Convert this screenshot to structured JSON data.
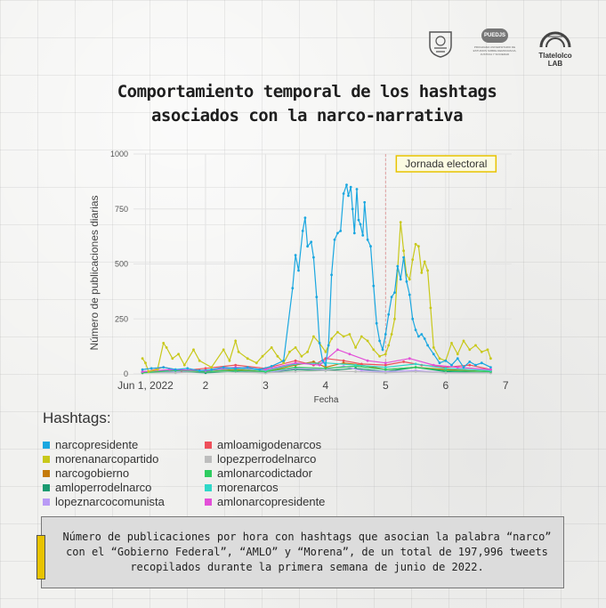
{
  "logos": {
    "unam": "unam-crest-icon",
    "puedjs": "PUEDJS",
    "puedjs_sub": "PROGRAMA UNIVERSITARIO DE ESTUDIOS SOBRE DEMOCRACIA, JUSTICIA Y SOCIEDAD",
    "tlatelolco": "Tlatelolco LAB"
  },
  "title_line1": "Comportamiento temporal de los hashtags",
  "title_line2": "asociados con la narco-narrativa",
  "hashtags_title": "Hashtags:",
  "caption": "Número de publicaciones por hora con hashtags que asocian la palabra “narco” con el “Gobierno Federal”, “AMLO” y “Morena”, de un total de 197,996 tweets recopilados durante la primera semana de junio de 2022.",
  "colors": {
    "accent_yellow": "#e8c300",
    "event_line": "#e0a0a0"
  },
  "chart_data": {
    "type": "line",
    "title": "Comportamiento temporal de los hashtags asociados con la narco-narrativa",
    "xlabel": "Fecha",
    "ylabel": "Número de publicaciones diarias",
    "x_tick_labels": [
      "Jun 1, 2022",
      "2",
      "3",
      "4",
      "5",
      "6",
      "7"
    ],
    "x_ticks": [
      1,
      2,
      3,
      4,
      5,
      6,
      7
    ],
    "xlim": [
      0.8,
      7.1
    ],
    "y_ticks": [
      0,
      250,
      500,
      750,
      1000
    ],
    "ylim": [
      0,
      1000
    ],
    "grid": true,
    "annotation": {
      "label": "Jornada electoral",
      "x": 5.0
    },
    "legend_position": "below",
    "series": [
      {
        "name": "narcopresidente",
        "color": "#1aa7e0",
        "points": [
          [
            0.95,
            20
          ],
          [
            1.1,
            25
          ],
          [
            1.3,
            30
          ],
          [
            1.5,
            20
          ],
          [
            1.7,
            25
          ],
          [
            1.9,
            15
          ],
          [
            2.1,
            20
          ],
          [
            2.3,
            30
          ],
          [
            2.5,
            25
          ],
          [
            2.7,
            30
          ],
          [
            2.9,
            20
          ],
          [
            3.1,
            35
          ],
          [
            3.3,
            60
          ],
          [
            3.45,
            390
          ],
          [
            3.5,
            540
          ],
          [
            3.55,
            470
          ],
          [
            3.62,
            650
          ],
          [
            3.66,
            710
          ],
          [
            3.7,
            580
          ],
          [
            3.76,
            600
          ],
          [
            3.8,
            530
          ],
          [
            3.85,
            350
          ],
          [
            3.9,
            140
          ],
          [
            3.95,
            60
          ],
          [
            4.0,
            40
          ],
          [
            4.05,
            130
          ],
          [
            4.1,
            450
          ],
          [
            4.15,
            610
          ],
          [
            4.2,
            640
          ],
          [
            4.25,
            650
          ],
          [
            4.3,
            820
          ],
          [
            4.35,
            860
          ],
          [
            4.38,
            810
          ],
          [
            4.42,
            850
          ],
          [
            4.45,
            750
          ],
          [
            4.48,
            640
          ],
          [
            4.52,
            840
          ],
          [
            4.55,
            700
          ],
          [
            4.58,
            680
          ],
          [
            4.62,
            630
          ],
          [
            4.65,
            780
          ],
          [
            4.7,
            610
          ],
          [
            4.75,
            580
          ],
          [
            4.8,
            400
          ],
          [
            4.85,
            230
          ],
          [
            4.9,
            150
          ],
          [
            4.95,
            110
          ],
          [
            5.0,
            180
          ],
          [
            5.05,
            270
          ],
          [
            5.1,
            350
          ],
          [
            5.15,
            370
          ],
          [
            5.2,
            490
          ],
          [
            5.25,
            430
          ],
          [
            5.3,
            530
          ],
          [
            5.35,
            420
          ],
          [
            5.4,
            360
          ],
          [
            5.45,
            250
          ],
          [
            5.5,
            200
          ],
          [
            5.55,
            170
          ],
          [
            5.6,
            180
          ],
          [
            5.65,
            160
          ],
          [
            5.7,
            130
          ],
          [
            5.8,
            90
          ],
          [
            5.9,
            50
          ],
          [
            6.0,
            60
          ],
          [
            6.1,
            40
          ],
          [
            6.2,
            70
          ],
          [
            6.3,
            30
          ],
          [
            6.4,
            55
          ],
          [
            6.5,
            40
          ],
          [
            6.6,
            50
          ],
          [
            6.75,
            30
          ]
        ]
      },
      {
        "name": "morenanarcopartido",
        "color": "#c8c81a",
        "points": [
          [
            0.95,
            70
          ],
          [
            1.0,
            50
          ],
          [
            1.05,
            10
          ],
          [
            1.2,
            20
          ],
          [
            1.3,
            140
          ],
          [
            1.35,
            120
          ],
          [
            1.45,
            70
          ],
          [
            1.55,
            90
          ],
          [
            1.65,
            40
          ],
          [
            1.8,
            110
          ],
          [
            1.9,
            60
          ],
          [
            2.1,
            30
          ],
          [
            2.3,
            110
          ],
          [
            2.4,
            60
          ],
          [
            2.5,
            150
          ],
          [
            2.55,
            100
          ],
          [
            2.7,
            70
          ],
          [
            2.85,
            50
          ],
          [
            2.95,
            80
          ],
          [
            3.1,
            120
          ],
          [
            3.2,
            80
          ],
          [
            3.3,
            50
          ],
          [
            3.4,
            100
          ],
          [
            3.5,
            120
          ],
          [
            3.6,
            80
          ],
          [
            3.7,
            100
          ],
          [
            3.8,
            170
          ],
          [
            3.9,
            140
          ],
          [
            4.0,
            100
          ],
          [
            4.1,
            160
          ],
          [
            4.2,
            190
          ],
          [
            4.3,
            170
          ],
          [
            4.4,
            180
          ],
          [
            4.5,
            120
          ],
          [
            4.6,
            170
          ],
          [
            4.7,
            150
          ],
          [
            4.8,
            110
          ],
          [
            4.9,
            80
          ],
          [
            5.0,
            90
          ],
          [
            5.05,
            130
          ],
          [
            5.1,
            180
          ],
          [
            5.15,
            250
          ],
          [
            5.2,
            470
          ],
          [
            5.25,
            690
          ],
          [
            5.3,
            560
          ],
          [
            5.35,
            450
          ],
          [
            5.4,
            430
          ],
          [
            5.45,
            520
          ],
          [
            5.5,
            590
          ],
          [
            5.55,
            580
          ],
          [
            5.6,
            460
          ],
          [
            5.65,
            510
          ],
          [
            5.7,
            470
          ],
          [
            5.75,
            300
          ],
          [
            5.8,
            120
          ],
          [
            5.9,
            70
          ],
          [
            6.0,
            60
          ],
          [
            6.1,
            140
          ],
          [
            6.2,
            90
          ],
          [
            6.3,
            150
          ],
          [
            6.4,
            110
          ],
          [
            6.5,
            130
          ],
          [
            6.6,
            100
          ],
          [
            6.7,
            110
          ],
          [
            6.75,
            70
          ]
        ]
      },
      {
        "name": "narcogobierno",
        "color": "#c47a0a",
        "points": [
          [
            0.95,
            10
          ],
          [
            1.5,
            15
          ],
          [
            2.0,
            10
          ],
          [
            2.5,
            20
          ],
          [
            3.0,
            10
          ],
          [
            3.5,
            40
          ],
          [
            3.8,
            55
          ],
          [
            4.0,
            30
          ],
          [
            4.3,
            50
          ],
          [
            4.6,
            40
          ],
          [
            5.0,
            20
          ],
          [
            5.5,
            30
          ],
          [
            6.0,
            20
          ],
          [
            6.75,
            10
          ]
        ]
      },
      {
        "name": "amloperrodelnarco",
        "color": "#1a9a70",
        "points": [
          [
            0.95,
            5
          ],
          [
            1.5,
            10
          ],
          [
            2.0,
            5
          ],
          [
            2.5,
            10
          ],
          [
            3.0,
            5
          ],
          [
            3.5,
            20
          ],
          [
            4.0,
            15
          ],
          [
            4.5,
            25
          ],
          [
            5.0,
            10
          ],
          [
            5.5,
            30
          ],
          [
            6.0,
            10
          ],
          [
            6.75,
            5
          ]
        ]
      },
      {
        "name": "lopeznarcocomunista",
        "color": "#b99af5",
        "points": [
          [
            0.95,
            5
          ],
          [
            1.5,
            10
          ],
          [
            2.0,
            10
          ],
          [
            2.5,
            15
          ],
          [
            3.0,
            5
          ],
          [
            3.5,
            25
          ],
          [
            4.0,
            20
          ],
          [
            4.3,
            35
          ],
          [
            4.6,
            15
          ],
          [
            5.0,
            10
          ],
          [
            5.5,
            15
          ],
          [
            6.0,
            5
          ],
          [
            6.75,
            5
          ]
        ]
      },
      {
        "name": "amloamigodenarcos",
        "color": "#ee4f5a",
        "points": [
          [
            0.95,
            5
          ],
          [
            1.3,
            30
          ],
          [
            1.6,
            15
          ],
          [
            2.0,
            25
          ],
          [
            2.5,
            40
          ],
          [
            3.0,
            25
          ],
          [
            3.5,
            60
          ],
          [
            3.8,
            40
          ],
          [
            4.0,
            70
          ],
          [
            4.3,
            60
          ],
          [
            4.6,
            45
          ],
          [
            5.0,
            40
          ],
          [
            5.3,
            55
          ],
          [
            5.6,
            40
          ],
          [
            6.0,
            30
          ],
          [
            6.4,
            40
          ],
          [
            6.75,
            20
          ]
        ]
      },
      {
        "name": "lopezperrodelnarco",
        "color": "#bdbdbd",
        "points": [
          [
            0.95,
            5
          ],
          [
            1.5,
            5
          ],
          [
            2.0,
            10
          ],
          [
            3.0,
            5
          ],
          [
            3.5,
            10
          ],
          [
            4.0,
            15
          ],
          [
            4.5,
            10
          ],
          [
            5.0,
            5
          ],
          [
            5.5,
            10
          ],
          [
            6.0,
            5
          ],
          [
            6.75,
            5
          ]
        ]
      },
      {
        "name": "amlonarcodictador",
        "color": "#2ecc60",
        "points": [
          [
            0.95,
            5
          ],
          [
            1.5,
            15
          ],
          [
            2.0,
            10
          ],
          [
            2.5,
            15
          ],
          [
            3.0,
            10
          ],
          [
            3.5,
            30
          ],
          [
            4.0,
            25
          ],
          [
            4.5,
            35
          ],
          [
            5.0,
            20
          ],
          [
            5.5,
            30
          ],
          [
            6.0,
            15
          ],
          [
            6.75,
            10
          ]
        ]
      },
      {
        "name": "morenarcos",
        "color": "#2fd8c8",
        "points": [
          [
            0.95,
            10
          ],
          [
            1.5,
            20
          ],
          [
            2.0,
            15
          ],
          [
            2.5,
            25
          ],
          [
            3.0,
            15
          ],
          [
            3.5,
            45
          ],
          [
            4.0,
            50
          ],
          [
            4.5,
            40
          ],
          [
            5.0,
            30
          ],
          [
            5.5,
            45
          ],
          [
            6.0,
            25
          ],
          [
            6.75,
            15
          ]
        ]
      },
      {
        "name": "amlonarcopresidente",
        "color": "#e34fd8",
        "points": [
          [
            0.95,
            10
          ],
          [
            1.4,
            20
          ],
          [
            2.0,
            15
          ],
          [
            2.5,
            30
          ],
          [
            3.0,
            20
          ],
          [
            3.5,
            50
          ],
          [
            3.9,
            40
          ],
          [
            4.2,
            110
          ],
          [
            4.4,
            90
          ],
          [
            4.7,
            60
          ],
          [
            5.0,
            50
          ],
          [
            5.4,
            70
          ],
          [
            5.8,
            40
          ],
          [
            6.2,
            30
          ],
          [
            6.75,
            20
          ]
        ]
      }
    ]
  }
}
